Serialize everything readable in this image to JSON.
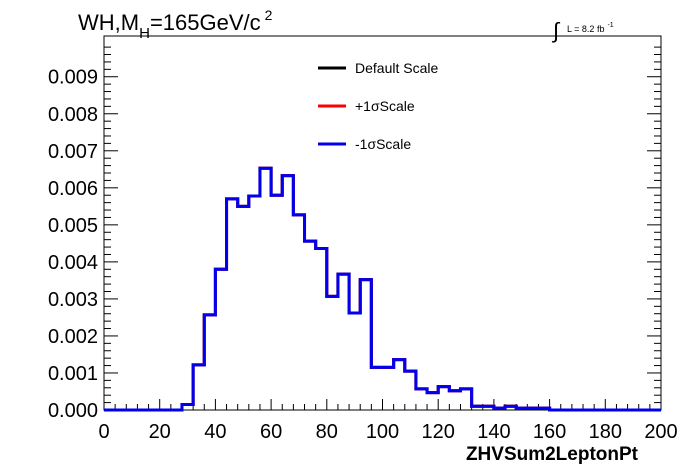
{
  "chart_data": {
    "type": "line",
    "title_main": "WH,M",
    "title_sub": "H",
    "title_rest": "=165GeV/c",
    "title_sup": "2",
    "lumi_label": "L = 8.2 fb",
    "lumi_sup": "-1",
    "xlabel": "ZHVSum2LeptonPt",
    "ylabel": "",
    "xlim": [
      0,
      200
    ],
    "ylim": [
      0,
      0.0101
    ],
    "x_ticks": [
      "0",
      "20",
      "40",
      "60",
      "80",
      "100",
      "120",
      "140",
      "160",
      "180",
      "200"
    ],
    "y_ticks": [
      "0.000",
      "0.001",
      "0.002",
      "0.003",
      "0.004",
      "0.005",
      "0.006",
      "0.007",
      "0.008",
      "0.009"
    ],
    "bin_width": 4,
    "bin_edges_start": 0,
    "series": [
      {
        "name": "Default Scale",
        "color": "#000000",
        "values": [
          0,
          0,
          0,
          0,
          0,
          0,
          0,
          0.00015,
          0.00122,
          0.00257,
          0.0038,
          0.0057,
          0.0055,
          0.00578,
          0.00653,
          0.0058,
          0.00633,
          0.00527,
          0.00456,
          0.00436,
          0.00307,
          0.00367,
          0.00262,
          0.00352,
          0.00115,
          0.00115,
          0.00136,
          0.00105,
          0.00057,
          0.00047,
          0.00063,
          0.00052,
          0.00057,
          0.0001,
          0.0001,
          5e-05,
          0.0001,
          5e-05,
          5e-05,
          5e-05,
          0,
          0,
          0,
          0,
          0,
          0,
          0,
          0,
          0,
          0
        ]
      },
      {
        "name": "+1σScale",
        "color": "#ff0000",
        "values": [
          0,
          0,
          0,
          0,
          0,
          0,
          0,
          0.00015,
          0.00122,
          0.00257,
          0.0038,
          0.0057,
          0.0055,
          0.00578,
          0.00653,
          0.0058,
          0.00633,
          0.00527,
          0.00456,
          0.00436,
          0.00307,
          0.00367,
          0.00262,
          0.00352,
          0.00115,
          0.00115,
          0.00136,
          0.00105,
          0.00057,
          0.00047,
          0.00063,
          0.00052,
          0.00057,
          0.0001,
          0.0001,
          5e-05,
          0.0001,
          5e-05,
          5e-05,
          5e-05,
          0,
          0,
          0,
          0,
          0,
          0,
          0,
          0,
          0,
          0
        ]
      },
      {
        "name": "-1σScale",
        "color": "#0000ee",
        "values": [
          0,
          0,
          0,
          0,
          0,
          0,
          0,
          0.00015,
          0.00122,
          0.00257,
          0.0038,
          0.0057,
          0.0055,
          0.00578,
          0.00653,
          0.0058,
          0.00633,
          0.00527,
          0.00456,
          0.00436,
          0.00307,
          0.00367,
          0.00262,
          0.00352,
          0.00115,
          0.00115,
          0.00136,
          0.00105,
          0.00057,
          0.00047,
          0.00063,
          0.00052,
          0.00057,
          0.0001,
          0.0001,
          5e-05,
          0.0001,
          5e-05,
          5e-05,
          5e-05,
          0,
          0,
          0,
          0,
          0,
          0,
          0,
          0,
          0,
          0
        ]
      }
    ],
    "legend_position": "top-center",
    "grid": false
  }
}
